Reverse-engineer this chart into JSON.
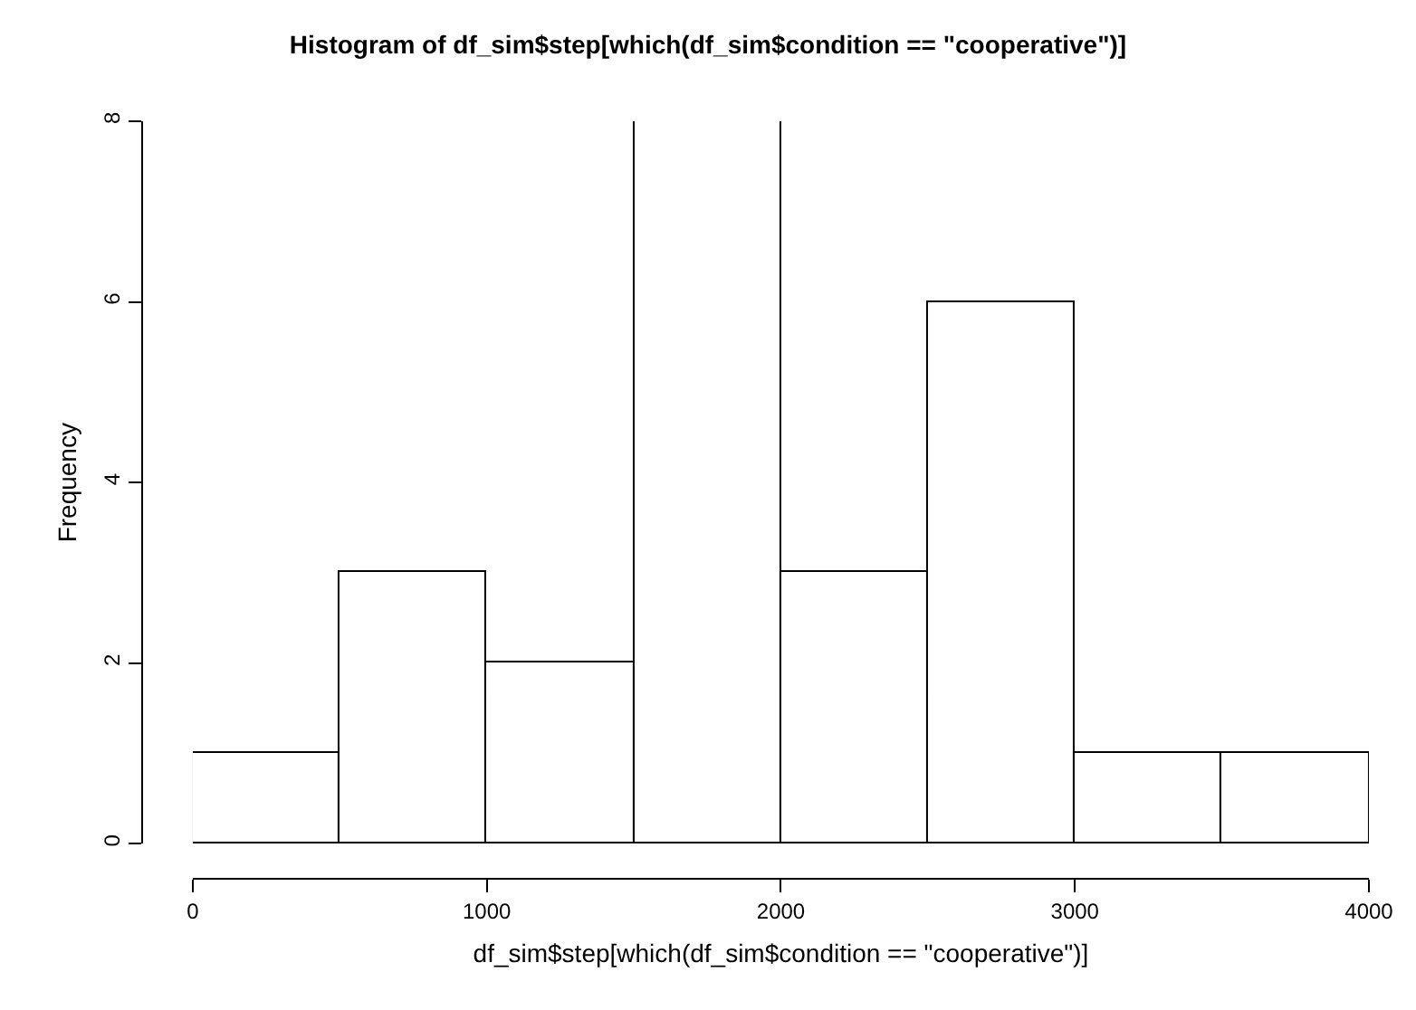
{
  "chart_data": {
    "type": "histogram",
    "title": "Histogram of df_sim$step[which(df_sim$condition == \"cooperative\")]",
    "xlabel": "df_sim$step[which(df_sim$condition == \"cooperative\")]",
    "ylabel": "Frequency",
    "bins": [
      0,
      500,
      1000,
      1500,
      2000,
      2500,
      3000,
      3500,
      4000
    ],
    "values": [
      1,
      3,
      2,
      8,
      3,
      6,
      1,
      1
    ],
    "color": "#ffffff",
    "xlim": [
      0,
      4000
    ],
    "xticks": [
      0,
      1000,
      2000,
      3000,
      4000
    ],
    "ylim": [
      0,
      8
    ],
    "yticks": [
      0,
      2,
      4,
      6,
      8
    ]
  }
}
